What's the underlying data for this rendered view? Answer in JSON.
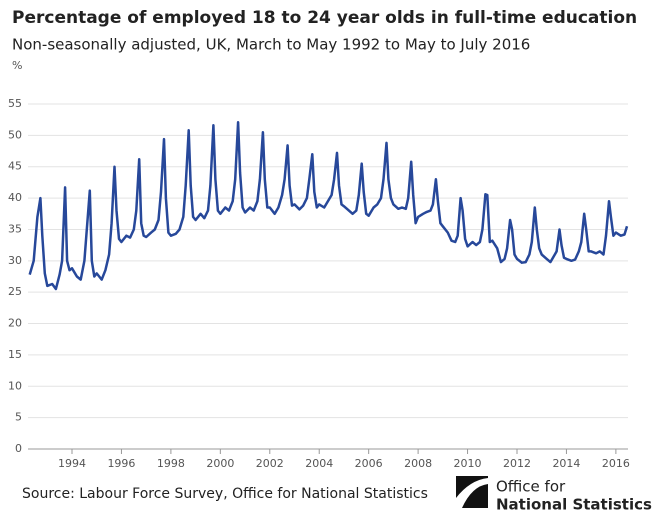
{
  "chart_data": {
    "type": "line",
    "title": "Percentage of employed 18 to 24 year olds in full-time education",
    "subtitle": "Non-seasonally adjusted, UK, March to May 1992 to May to July 2016",
    "y_unit": "%",
    "source": "Source: Labour Force Survey, Office for National Statistics",
    "logo": [
      "Office for",
      "National Statistics"
    ],
    "color": "#27489a",
    "grid": true,
    "xlim": [
      1992.22,
      2016.49
    ],
    "ylim": [
      0,
      55
    ],
    "xticks": [
      1994,
      1996,
      1998,
      2000,
      2002,
      2004,
      2006,
      2008,
      2010,
      2012,
      2014,
      2016
    ],
    "yticks": [
      0,
      5,
      10,
      15,
      20,
      25,
      30,
      35,
      40,
      45,
      50,
      55
    ],
    "x": [
      1992.29,
      1992.45,
      1992.6,
      1992.72,
      1992.8,
      1992.9,
      1993.0,
      1993.2,
      1993.35,
      1993.5,
      1993.6,
      1993.72,
      1993.8,
      1993.9,
      1994.0,
      1994.2,
      1994.35,
      1994.5,
      1994.6,
      1994.72,
      1994.8,
      1994.9,
      1995.0,
      1995.2,
      1995.35,
      1995.5,
      1995.6,
      1995.72,
      1995.8,
      1995.9,
      1996.0,
      1996.2,
      1996.35,
      1996.5,
      1996.6,
      1996.72,
      1996.8,
      1996.9,
      1997.0,
      1997.2,
      1997.35,
      1997.5,
      1997.6,
      1997.72,
      1997.8,
      1997.9,
      1998.0,
      1998.2,
      1998.35,
      1998.5,
      1998.6,
      1998.72,
      1998.8,
      1998.9,
      1999.0,
      1999.2,
      1999.35,
      1999.5,
      1999.6,
      1999.72,
      1999.8,
      1999.9,
      2000.0,
      2000.2,
      2000.35,
      2000.5,
      2000.6,
      2000.72,
      2000.8,
      2000.9,
      2001.0,
      2001.2,
      2001.35,
      2001.5,
      2001.6,
      2001.72,
      2001.8,
      2001.9,
      2002.0,
      2002.2,
      2002.35,
      2002.5,
      2002.6,
      2002.72,
      2002.8,
      2002.9,
      2003.0,
      2003.2,
      2003.35,
      2003.5,
      2003.6,
      2003.72,
      2003.8,
      2003.9,
      2004.0,
      2004.2,
      2004.35,
      2004.5,
      2004.6,
      2004.72,
      2004.8,
      2004.9,
      2005.0,
      2005.2,
      2005.35,
      2005.5,
      2005.6,
      2005.72,
      2005.8,
      2005.9,
      2006.0,
      2006.2,
      2006.35,
      2006.5,
      2006.6,
      2006.72,
      2006.8,
      2006.9,
      2007.0,
      2007.2,
      2007.35,
      2007.5,
      2007.6,
      2007.72,
      2007.8,
      2007.9,
      2008.0,
      2008.2,
      2008.35,
      2008.5,
      2008.6,
      2008.72,
      2008.8,
      2008.9,
      2009.0,
      2009.2,
      2009.35,
      2009.5,
      2009.6,
      2009.72,
      2009.8,
      2009.9,
      2010.0,
      2010.2,
      2010.35,
      2010.5,
      2010.6,
      2010.72,
      2010.8,
      2010.9,
      2011.0,
      2011.2,
      2011.35,
      2011.5,
      2011.6,
      2011.72,
      2011.8,
      2011.9,
      2012.0,
      2012.2,
      2012.35,
      2012.5,
      2012.6,
      2012.72,
      2012.8,
      2012.9,
      2013.0,
      2013.2,
      2013.35,
      2013.5,
      2013.6,
      2013.72,
      2013.8,
      2013.9,
      2014.0,
      2014.2,
      2014.35,
      2014.5,
      2014.6,
      2014.72,
      2014.8,
      2014.9,
      2015.0,
      2015.2,
      2015.35,
      2015.5,
      2015.6,
      2015.72,
      2015.8,
      2015.9,
      2016.0,
      2016.2,
      2016.35,
      2016.45
    ],
    "values": [
      27.8,
      30,
      37,
      40,
      34,
      28,
      26,
      26.3,
      25.5,
      27.8,
      30,
      41.7,
      30,
      28.5,
      28.8,
      27.5,
      27,
      30,
      35,
      41.2,
      30,
      27.5,
      28,
      27,
      28.5,
      31,
      36,
      45,
      38,
      33.5,
      33,
      34,
      33.7,
      35,
      38,
      46.2,
      36,
      34,
      33.8,
      34.5,
      35,
      36.5,
      41,
      49.4,
      40,
      34.5,
      34,
      34.3,
      35,
      37,
      42,
      50.8,
      42,
      37,
      36.5,
      37.5,
      36.8,
      38,
      42,
      51.6,
      43,
      38,
      37.5,
      38.5,
      38,
      39.5,
      43,
      52.1,
      44,
      38.5,
      37.7,
      38.5,
      38,
      39.5,
      43,
      50.5,
      43,
      38.5,
      38.5,
      37.5,
      38.5,
      40.5,
      43,
      48.4,
      42,
      38.8,
      39,
      38.2,
      38.8,
      40,
      43,
      47,
      41,
      38.5,
      39,
      38.5,
      39.5,
      40.5,
      43,
      47.2,
      42,
      39,
      38.7,
      38,
      37.5,
      38,
      40.5,
      45.5,
      41,
      37.5,
      37.2,
      38.5,
      39,
      40,
      43,
      48.8,
      43,
      40,
      39,
      38.3,
      38.5,
      38.3,
      40,
      45.8,
      40.5,
      36,
      37,
      37.5,
      37.8,
      38,
      39,
      43,
      39.5,
      36,
      35.5,
      34.5,
      33.2,
      33,
      34,
      40,
      38,
      33.5,
      32.3,
      33,
      32.5,
      33,
      35,
      40.6,
      40.5,
      33,
      33.2,
      32,
      29.8,
      30.3,
      32,
      36.5,
      35,
      31,
      30.3,
      29.7,
      29.8,
      31,
      33,
      38.5,
      35,
      32,
      31,
      30.3,
      29.8,
      30.8,
      31.5,
      35,
      32.5,
      30.5,
      30.3,
      30,
      30.2,
      31.5,
      33,
      37.5,
      35,
      31.5,
      31.5,
      31.2,
      31.5,
      31,
      34,
      39.5,
      37,
      34,
      34.5,
      34,
      34.2,
      35.5
    ]
  }
}
